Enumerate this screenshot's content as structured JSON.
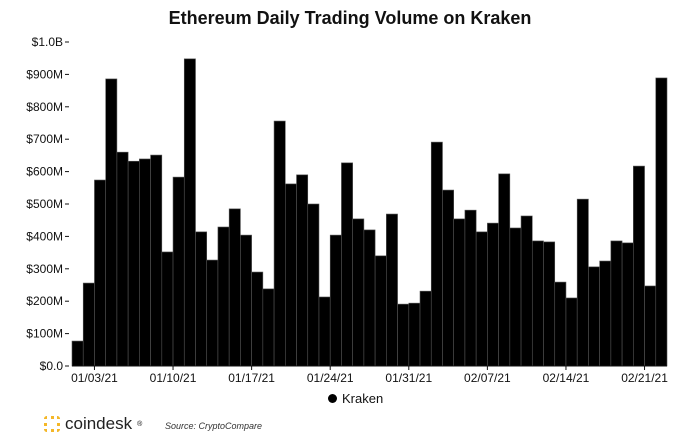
{
  "chart_data": {
    "type": "bar",
    "title": "Ethereum Daily Trading Volume on Kraken",
    "xlabel": "",
    "ylabel": "",
    "ylim": [
      0,
      1000
    ],
    "yunit": "M USD",
    "yticks": [
      "$0.0",
      "$100M",
      "$200M",
      "$300M",
      "$400M",
      "$500M",
      "$600M",
      "$700M",
      "$800M",
      "$900M",
      "$1.0B"
    ],
    "xticks": [
      {
        "label": "01/03/21",
        "index": 2
      },
      {
        "label": "01/10/21",
        "index": 9
      },
      {
        "label": "01/17/21",
        "index": 16
      },
      {
        "label": "01/24/21",
        "index": 23
      },
      {
        "label": "01/31/21",
        "index": 30
      },
      {
        "label": "02/07/21",
        "index": 37
      },
      {
        "label": "02/14/21",
        "index": 44
      },
      {
        "label": "02/21/21",
        "index": 51
      }
    ],
    "start_date": "01/01/21",
    "series": [
      {
        "name": "Kraken",
        "color": "#000000",
        "values": [
          77,
          256,
          574,
          886,
          660,
          632,
          639,
          651,
          352,
          583,
          948,
          414,
          327,
          429,
          485,
          404,
          290,
          238,
          756,
          562,
          590,
          500,
          213,
          404,
          627,
          454,
          420,
          340,
          469,
          191,
          194,
          231,
          691,
          543,
          454,
          481,
          414,
          441,
          593,
          426,
          463,
          386,
          383,
          259,
          210,
          515,
          306,
          324,
          386,
          380,
          617,
          247,
          889
        ]
      }
    ],
    "legend": "bottom-center",
    "grid": false
  },
  "footer": {
    "brand": "coindesk",
    "registered": "®",
    "source": "Source: CryptoCompare"
  }
}
